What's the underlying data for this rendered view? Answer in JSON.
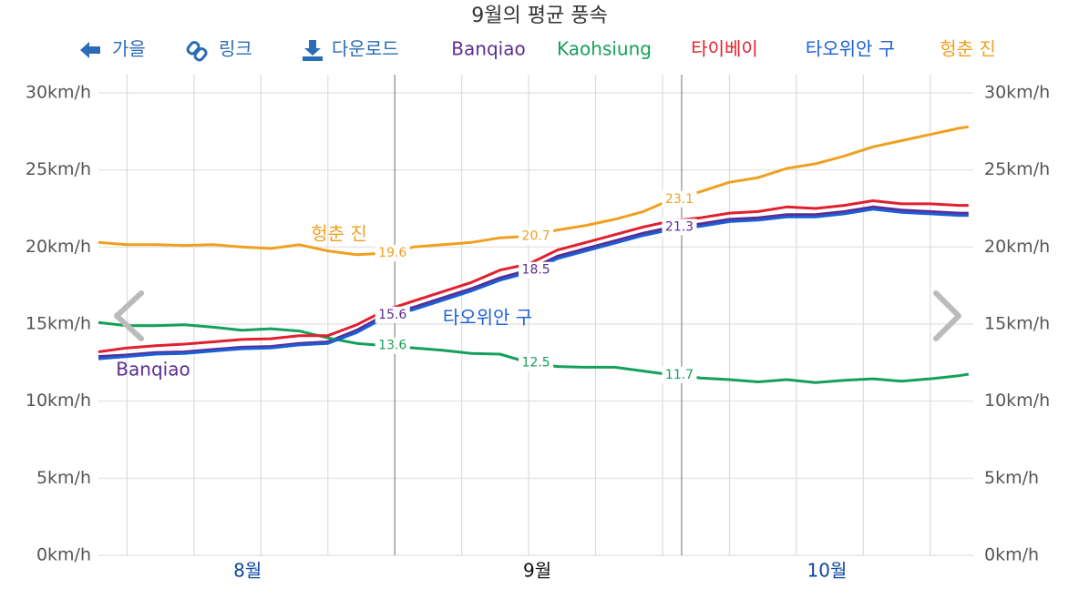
{
  "chart_data": {
    "type": "line",
    "title": "9월의 평균 풍속",
    "toolbar": [
      "가을",
      "링크",
      "다운로드"
    ],
    "x": [
      1,
      4,
      7,
      10,
      13,
      16,
      19,
      22,
      25,
      28,
      31,
      34,
      37,
      40,
      43,
      46,
      49,
      52,
      55,
      58,
      61,
      64,
      67,
      70,
      73,
      76,
      79,
      82,
      85,
      88,
      91,
      92
    ],
    "xlim": [
      1,
      92.5
    ],
    "xticks": [
      {
        "value": 16.6,
        "label": "8월",
        "color": "#0d47a1"
      },
      {
        "value": 46.9,
        "label": "9월",
        "color": "#111111"
      },
      {
        "value": 77.2,
        "label": "10월",
        "color": "#0d47a1"
      }
    ],
    "xgrid": [
      4,
      11,
      18,
      25,
      39,
      46,
      53,
      60,
      67,
      74,
      81,
      88
    ],
    "month_boundaries": [
      32,
      62
    ],
    "ylim": [
      0,
      30
    ],
    "yticks": [
      {
        "value": 0,
        "label": "0km/h"
      },
      {
        "value": 5,
        "label": "5km/h"
      },
      {
        "value": 10,
        "label": "10km/h"
      },
      {
        "value": 15,
        "label": "15km/h"
      },
      {
        "value": 20,
        "label": "20km/h"
      },
      {
        "value": 25,
        "label": "25km/h"
      },
      {
        "value": 30,
        "label": "30km/h"
      }
    ],
    "grid": true,
    "series": [
      {
        "name": "Banqiao",
        "color": "#5b2d90",
        "values": [
          12.9,
          13.0,
          13.15,
          13.2,
          13.35,
          13.5,
          13.55,
          13.75,
          13.85,
          14.6,
          15.6,
          16.1,
          16.7,
          17.3,
          18.0,
          18.5,
          19.4,
          19.9,
          20.4,
          20.9,
          21.3,
          21.5,
          21.8,
          21.9,
          22.1,
          22.1,
          22.3,
          22.6,
          22.4,
          22.3,
          22.2,
          22.2
        ],
        "value_labels": [
          null,
          null,
          null,
          null,
          null,
          null,
          null,
          null,
          null,
          null,
          "15.6",
          null,
          null,
          null,
          null,
          "18.5",
          null,
          null,
          null,
          null,
          "21.3",
          null,
          null,
          null,
          null,
          null,
          null,
          null,
          null,
          null,
          null,
          null
        ]
      },
      {
        "name": "Kaohsiung",
        "color": "#14a05a",
        "values": [
          15.1,
          14.9,
          14.9,
          14.95,
          14.8,
          14.6,
          14.7,
          14.55,
          14.1,
          13.75,
          13.6,
          13.45,
          13.3,
          13.1,
          13.05,
          12.5,
          12.25,
          12.2,
          12.2,
          11.95,
          11.7,
          11.5,
          11.4,
          11.25,
          11.4,
          11.2,
          11.35,
          11.45,
          11.3,
          11.45,
          11.65,
          11.75
        ],
        "value_labels": [
          null,
          null,
          null,
          null,
          null,
          null,
          null,
          null,
          null,
          null,
          "13.6",
          null,
          null,
          null,
          null,
          "12.5",
          null,
          null,
          null,
          null,
          "11.7",
          null,
          null,
          null,
          null,
          null,
          null,
          null,
          null,
          null,
          null,
          null
        ]
      },
      {
        "name": "타이베이",
        "color": "#e0202e",
        "values": [
          13.2,
          13.45,
          13.6,
          13.7,
          13.85,
          14.0,
          14.05,
          14.25,
          14.25,
          14.95,
          15.9,
          16.5,
          17.1,
          17.7,
          18.5,
          18.9,
          19.8,
          20.3,
          20.8,
          21.3,
          21.7,
          21.9,
          22.2,
          22.3,
          22.6,
          22.5,
          22.7,
          23.0,
          22.8,
          22.8,
          22.7,
          22.7
        ]
      },
      {
        "name": "타오위안 구",
        "color": "#1a5fd8",
        "values": [
          12.75,
          12.9,
          13.05,
          13.1,
          13.25,
          13.4,
          13.45,
          13.65,
          13.75,
          14.45,
          15.45,
          15.95,
          16.55,
          17.15,
          17.85,
          18.35,
          19.25,
          19.75,
          20.25,
          20.75,
          21.15,
          21.35,
          21.65,
          21.75,
          21.95,
          21.95,
          22.15,
          22.45,
          22.25,
          22.15,
          22.05,
          22.05
        ]
      },
      {
        "name": "헝춘 진",
        "color": "#f0a020",
        "values": [
          20.3,
          20.15,
          20.15,
          20.1,
          20.15,
          20.0,
          19.9,
          20.15,
          19.75,
          19.5,
          19.6,
          20.0,
          20.15,
          20.3,
          20.6,
          20.7,
          21.1,
          21.4,
          21.8,
          22.3,
          23.1,
          23.6,
          24.2,
          24.5,
          25.1,
          25.4,
          25.9,
          26.5,
          26.9,
          27.3,
          27.7,
          27.8
        ],
        "value_labels": [
          null,
          null,
          null,
          null,
          null,
          null,
          null,
          null,
          null,
          null,
          "19.6",
          null,
          null,
          null,
          null,
          "20.7",
          null,
          null,
          null,
          null,
          "23.1",
          null,
          null,
          null,
          null,
          null,
          null,
          null,
          null,
          null,
          null,
          null
        ]
      }
    ]
  }
}
